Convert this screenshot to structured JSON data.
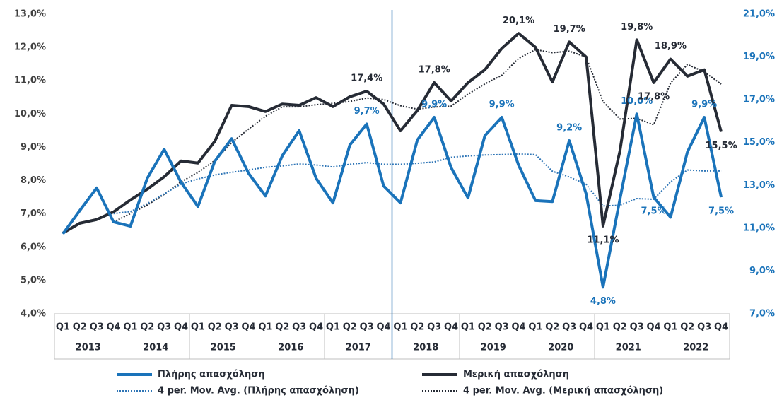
{
  "chart_data": {
    "type": "line",
    "categories": [
      "Q1",
      "Q2",
      "Q3",
      "Q4",
      "Q1",
      "Q2",
      "Q3",
      "Q4",
      "Q1",
      "Q2",
      "Q3",
      "Q4",
      "Q1",
      "Q2",
      "Q3",
      "Q4",
      "Q1",
      "Q2",
      "Q3",
      "Q4",
      "Q1",
      "Q2",
      "Q3",
      "Q4",
      "Q1",
      "Q2",
      "Q3",
      "Q4",
      "Q1",
      "Q2",
      "Q3",
      "Q4",
      "Q1",
      "Q2",
      "Q3",
      "Q4",
      "Q1",
      "Q2",
      "Q3",
      "Q4"
    ],
    "years": [
      "2013",
      "2014",
      "2015",
      "2016",
      "2017",
      "2018",
      "2019",
      "2020",
      "2021",
      "2022"
    ],
    "ylim": [
      4,
      13
    ],
    "yticks": [
      {
        "value": 4,
        "label": "4,0%"
      },
      {
        "value": 5,
        "label": "5,0%"
      },
      {
        "value": 6,
        "label": "6,0%"
      },
      {
        "value": 7,
        "label": "7,0%"
      },
      {
        "value": 8,
        "label": "8,0%"
      },
      {
        "value": 9,
        "label": "9,0%"
      },
      {
        "value": 10,
        "label": "10,0%"
      },
      {
        "value": 11,
        "label": "11,0%"
      },
      {
        "value": 12,
        "label": "12,0%"
      },
      {
        "value": 13,
        "label": "13,0%"
      }
    ],
    "y2lim": [
      7,
      21
    ],
    "y2ticks": [
      {
        "value": 7,
        "label": "7,0%"
      },
      {
        "value": 9,
        "label": "9,0%"
      },
      {
        "value": 11,
        "label": "11,0%"
      },
      {
        "value": 13,
        "label": "13,0%"
      },
      {
        "value": 15,
        "label": "15,0%"
      },
      {
        "value": 17,
        "label": "17,0%"
      },
      {
        "value": 19,
        "label": "19,0%"
      },
      {
        "value": 21,
        "label": "21,0%"
      }
    ],
    "legend": "bottom",
    "series": [
      {
        "name": "Πλήρης απασχόληση",
        "color": "#1a73ba",
        "line_style": "solid",
        "axis": "y",
        "values": [
          6.4,
          7.1,
          7.78,
          6.76,
          6.63,
          8.07,
          8.94,
          7.95,
          7.22,
          8.58,
          9.26,
          8.22,
          7.54,
          8.75,
          9.5,
          8.07,
          7.33,
          9.07,
          9.7,
          7.84,
          7.33,
          9.22,
          9.9,
          8.39,
          7.48,
          9.35,
          9.9,
          8.46,
          7.4,
          7.37,
          9.2,
          7.6,
          4.8,
          7.44,
          10.0,
          7.5,
          6.9,
          8.86,
          9.9,
          7.5
        ],
        "value_labels": [
          null,
          null,
          null,
          null,
          null,
          null,
          null,
          null,
          null,
          null,
          null,
          null,
          null,
          null,
          null,
          null,
          null,
          null,
          "9,7%",
          null,
          null,
          null,
          "9,9%",
          null,
          null,
          null,
          "9,9%",
          null,
          null,
          null,
          "9,2%",
          null,
          "4,8%",
          null,
          "10,0%",
          "7,5%",
          null,
          null,
          "9,9%",
          "7,5%"
        ]
      },
      {
        "name": "Μερική απασχόληση",
        "color": "#262b35",
        "line_style": "solid",
        "axis": "y2",
        "values": [
          10.77,
          11.23,
          11.4,
          11.76,
          12.32,
          12.82,
          13.4,
          14.14,
          14.04,
          15.06,
          16.74,
          16.68,
          16.45,
          16.8,
          16.74,
          17.1,
          16.68,
          17.14,
          17.4,
          16.8,
          15.55,
          16.5,
          17.8,
          16.94,
          17.8,
          18.4,
          19.4,
          20.1,
          19.45,
          17.83,
          19.7,
          19.0,
          11.1,
          14.6,
          19.8,
          17.8,
          18.9,
          18.1,
          18.4,
          15.5
        ],
        "value_labels": [
          null,
          null,
          null,
          null,
          null,
          null,
          null,
          null,
          null,
          null,
          null,
          null,
          null,
          null,
          null,
          null,
          null,
          null,
          "17,4%",
          null,
          null,
          null,
          "17,8%",
          null,
          null,
          null,
          null,
          "20,1%",
          null,
          null,
          "19,7%",
          null,
          "11,1%",
          null,
          "19,8%",
          "17,8%",
          "18,9%",
          null,
          null,
          "15,5%"
        ]
      },
      {
        "name": "4 per. Mov. Avg. (Πλήρης απασχόληση)",
        "color": "#2e75b6",
        "line_style": "dotted",
        "axis": "y",
        "values": [
          null,
          null,
          null,
          7.01,
          7.07,
          7.31,
          7.6,
          7.9,
          8.05,
          8.17,
          8.25,
          8.32,
          8.4,
          8.44,
          8.5,
          8.47,
          8.41,
          8.49,
          8.54,
          8.49,
          8.49,
          8.52,
          8.56,
          8.7,
          8.74,
          8.77,
          8.78,
          8.8,
          8.78,
          8.28,
          8.11,
          7.89,
          7.24,
          7.26,
          7.46,
          7.44,
          7.96,
          8.32,
          8.29,
          8.29
        ]
      },
      {
        "name": "4 per. Mov. Avg. (Μερική απασχόληση)",
        "color": "#262b35",
        "line_style": "dotted",
        "axis": "y2",
        "values": [
          null,
          null,
          null,
          11.29,
          11.68,
          12.08,
          12.58,
          13.17,
          13.6,
          14.16,
          15.0,
          15.63,
          16.23,
          16.67,
          16.67,
          16.77,
          16.83,
          16.92,
          17.08,
          17.01,
          16.72,
          16.56,
          16.66,
          16.7,
          17.26,
          17.74,
          18.14,
          18.93,
          19.34,
          19.2,
          19.27,
          19.0,
          16.91,
          16.1,
          16.13,
          15.83,
          17.78,
          18.65,
          18.3,
          17.73
        ]
      }
    ]
  }
}
